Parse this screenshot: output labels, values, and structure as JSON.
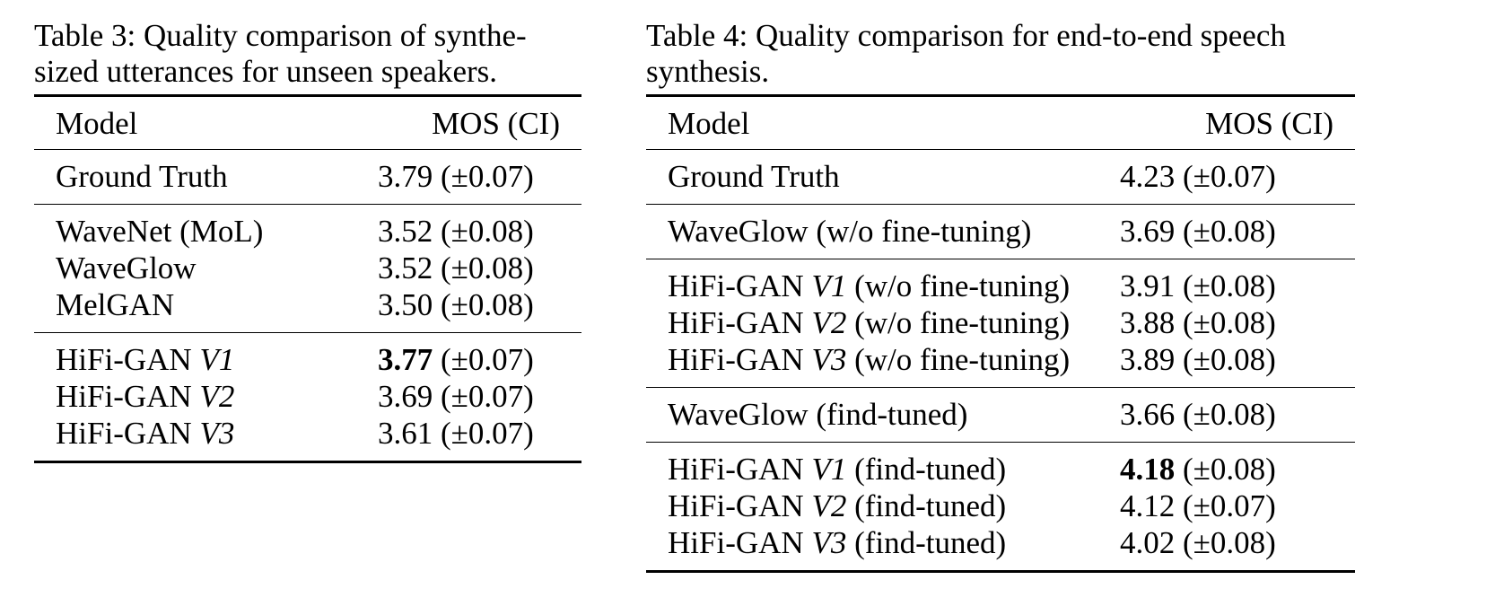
{
  "table3": {
    "caption_label": "Table 3:",
    "caption_text": "Quality comparison of synthe-sized utterances for unseen speakers.",
    "header": {
      "model": "Model",
      "mos": "MOS (CI)"
    },
    "groups": [
      [
        {
          "model": "Ground Truth",
          "mos_value": "3.79",
          "mos_ci": " (±0.07)",
          "bold": false
        }
      ],
      [
        {
          "model": "WaveNet (MoL)",
          "mos_value": "3.52",
          "mos_ci": " (±0.08)",
          "bold": false
        },
        {
          "model": "WaveGlow",
          "mos_value": "3.52",
          "mos_ci": " (±0.08)",
          "bold": false
        },
        {
          "model": "MelGAN",
          "mos_value": "3.50",
          "mos_ci": " (±0.08)",
          "bold": false
        }
      ],
      [
        {
          "model_prefix": "HiFi-GAN ",
          "model_var": "V1",
          "model_suffix": "",
          "mos_value": "3.77",
          "mos_ci": " (±0.07)",
          "bold": true
        },
        {
          "model_prefix": "HiFi-GAN ",
          "model_var": "V2",
          "model_suffix": "",
          "mos_value": "3.69",
          "mos_ci": " (±0.07)",
          "bold": false
        },
        {
          "model_prefix": "HiFi-GAN ",
          "model_var": "V3",
          "model_suffix": "",
          "mos_value": "3.61",
          "mos_ci": " (±0.07)",
          "bold": false
        }
      ]
    ]
  },
  "table4": {
    "caption_label": "Table 4:",
    "caption_text": "Quality comparison for end-to-end speech synthesis.",
    "header": {
      "model": "Model",
      "mos": "MOS (CI)"
    },
    "groups": [
      [
        {
          "model": "Ground Truth",
          "mos_value": "4.23",
          "mos_ci": " (±0.07)",
          "bold": false
        }
      ],
      [
        {
          "model": "WaveGlow (w/o fine-tuning)",
          "mos_value": "3.69",
          "mos_ci": " (±0.08)",
          "bold": false
        }
      ],
      [
        {
          "model_prefix": "HiFi-GAN ",
          "model_var": "V1",
          "model_suffix": " (w/o fine-tuning)",
          "mos_value": "3.91",
          "mos_ci": " (±0.08)",
          "bold": false
        },
        {
          "model_prefix": "HiFi-GAN ",
          "model_var": "V2",
          "model_suffix": " (w/o fine-tuning)",
          "mos_value": "3.88",
          "mos_ci": " (±0.08)",
          "bold": false
        },
        {
          "model_prefix": "HiFi-GAN ",
          "model_var": "V3",
          "model_suffix": " (w/o fine-tuning)",
          "mos_value": "3.89",
          "mos_ci": " (±0.08)",
          "bold": false
        }
      ],
      [
        {
          "model": "WaveGlow (find-tuned)",
          "mos_value": "3.66",
          "mos_ci": " (±0.08)",
          "bold": false
        }
      ],
      [
        {
          "model_prefix": "HiFi-GAN ",
          "model_var": "V1",
          "model_suffix": " (find-tuned)",
          "mos_value": "4.18",
          "mos_ci": " (±0.08)",
          "bold": true
        },
        {
          "model_prefix": "HiFi-GAN ",
          "model_var": "V2",
          "model_suffix": " (find-tuned)",
          "mos_value": "4.12",
          "mos_ci": " (±0.07)",
          "bold": false
        },
        {
          "model_prefix": "HiFi-GAN ",
          "model_var": "V3",
          "model_suffix": " (find-tuned)",
          "mos_value": "4.02",
          "mos_ci": " (±0.08)",
          "bold": false
        }
      ]
    ]
  }
}
